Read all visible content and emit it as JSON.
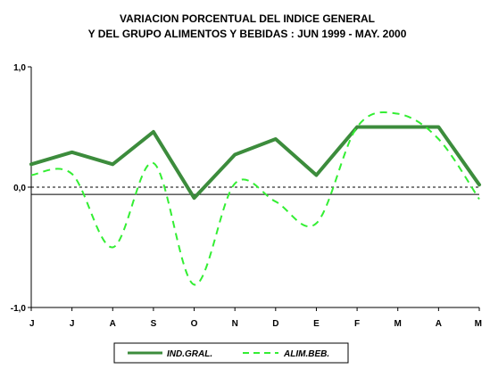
{
  "chart_data": {
    "type": "line",
    "title": [
      "VARIACION PORCENTUAL DEL INDICE GENERAL",
      "Y DEL GRUPO ALIMENTOS Y BEBIDAS : JUN 1999 - MAY. 2000"
    ],
    "categories": [
      "J",
      "J",
      "A",
      "S",
      "O",
      "N",
      "D",
      "E",
      "F",
      "M",
      "A",
      "M"
    ],
    "ylim": [
      -1.0,
      1.0
    ],
    "yticks": [
      {
        "value": 1.0,
        "label": "1,0"
      },
      {
        "value": 0.0,
        "label": "0,0"
      },
      {
        "value": -1.0,
        "label": "-1,0"
      }
    ],
    "reference_line": -0.06,
    "zero_line_style": "dashed",
    "legend_position": "bottom",
    "series": [
      {
        "name": "IND.GRAL.",
        "style": "solid",
        "color": "#3c8c3c",
        "values": [
          0.19,
          0.29,
          0.19,
          0.46,
          -0.09,
          0.27,
          0.4,
          0.1,
          0.5,
          0.5,
          0.5,
          0.02
        ]
      },
      {
        "name": "ALIM.BEB.",
        "style": "dashed",
        "color": "#33ee33",
        "values": [
          0.1,
          0.11,
          -0.5,
          0.2,
          -0.81,
          0.03,
          -0.12,
          -0.3,
          0.5,
          0.61,
          0.4,
          -0.1
        ]
      }
    ]
  }
}
